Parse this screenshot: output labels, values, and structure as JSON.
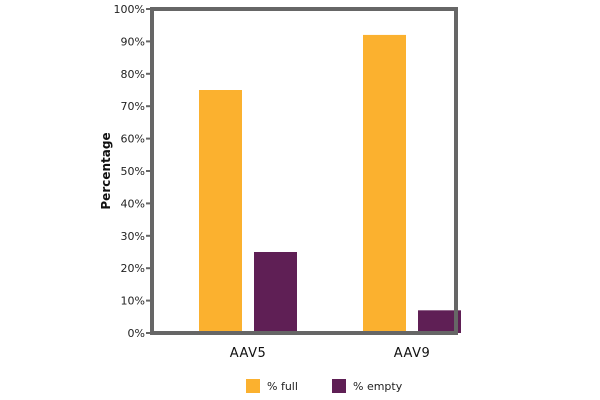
{
  "chart_data": {
    "type": "bar",
    "title": "",
    "xlabel": "",
    "ylabel": "Percentage",
    "ylim": [
      0,
      100
    ],
    "yticks": [
      "0%",
      "10%",
      "20%",
      "30%",
      "40%",
      "50%",
      "60%",
      "70%",
      "80%",
      "90%",
      "100%"
    ],
    "categories": [
      "AAV5",
      "AAV9"
    ],
    "series": [
      {
        "name": "% full",
        "color": "#FBB12F",
        "values": [
          75,
          92
        ]
      },
      {
        "name": "% empty",
        "color": "#5F1F55",
        "values": [
          25,
          7
        ]
      }
    ],
    "grid": false,
    "legend": "bottom"
  }
}
